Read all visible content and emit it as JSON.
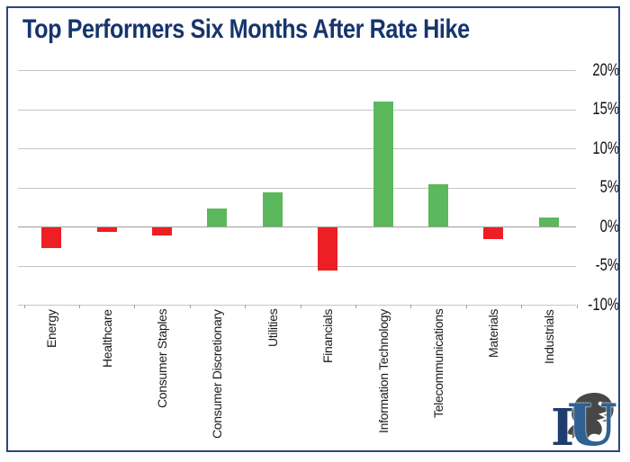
{
  "title": "Top Performers Six Months After Rate Hike",
  "chart_data": {
    "type": "bar",
    "title": "Top Performers Six Months After Rate Hike",
    "categories": [
      "Energy",
      "Healthcare",
      "Consumer Staples",
      "Consumer Discretionary",
      "Utilities",
      "Financials",
      "Information Technology",
      "Telecommunications",
      "Materials",
      "Industrials"
    ],
    "values": [
      -2.6,
      -0.6,
      -1.0,
      2.3,
      4.4,
      -5.5,
      16.0,
      5.4,
      -1.5,
      1.1
    ],
    "xlabel": "",
    "ylabel": "",
    "ylim": [
      -10,
      20
    ],
    "yticks": [
      20,
      15,
      10,
      5,
      0,
      -5,
      -10
    ],
    "ytick_labels": [
      "20%",
      "15%",
      "10%",
      "5%",
      "0%",
      "-5%",
      "-10%"
    ],
    "value_axis_side": "right",
    "x_label_rotation_deg": -90,
    "grid": true,
    "legend": false,
    "positive_color": "#5cb85c",
    "negative_color": "#ed1f24"
  },
  "logo": {
    "letter_i": "I",
    "letter_u": "U",
    "mascot_icon": "bear-head-icon"
  },
  "colors": {
    "border": "#28477f",
    "title_text": "#16356d",
    "gridline": "#c6c6c6",
    "zero_line": "#9e9e9e",
    "axis_text": "#111111",
    "logo_i": "#1e3c6e",
    "logo_u": "#2e6191",
    "mascot": "#474747"
  }
}
